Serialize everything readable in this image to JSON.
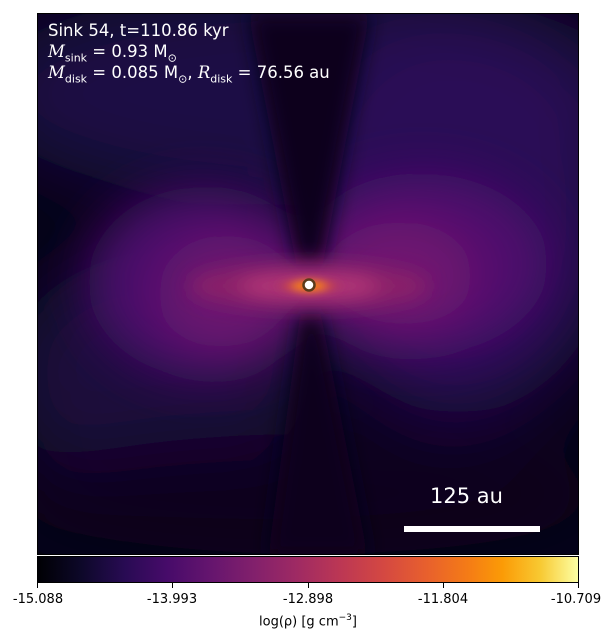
{
  "annotation": {
    "sink_line": "Sink 54, t=110.86 kyr",
    "msink_symbol": "M",
    "msink_sub": "sink",
    "msink_value": " = 0.93 M",
    "msink_unit_sub": "⊙",
    "mdisk_symbol": "M",
    "mdisk_sub": "disk",
    "mdisk_value": " = 0.085 M",
    "mdisk_unit_sub": "⊙",
    "rdisk_sep": ", ",
    "rdisk_symbol": "R",
    "rdisk_sub": "disk",
    "rdisk_value": " = 76.56 au"
  },
  "scale_bar": {
    "label": "125 au"
  },
  "colorbar": {
    "ticks": [
      "-15.088",
      "-13.993",
      "-12.898",
      "-11.804",
      "-10.709"
    ],
    "label_main": "log(ρ) [g cm",
    "label_sup": "−3",
    "label_end": "]",
    "colormap": "inferno",
    "min": -15.088,
    "max": -10.709
  },
  "colors": {
    "background": "#000004",
    "lobe": "#57106e",
    "disk_core": "#f57d15",
    "sink_marker_fill": "#ffffff",
    "sink_marker_edge": "#5a3a1a"
  }
}
